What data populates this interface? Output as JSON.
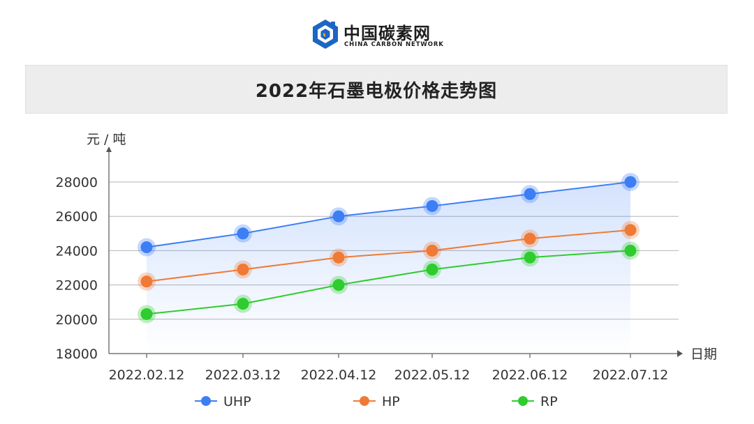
{
  "logo": {
    "name_cn": "中国碳素网",
    "name_en": "CHINA CARBON NETWORK"
  },
  "chart_data": {
    "type": "line",
    "title": "2022年石墨电极价格走势图",
    "ylabel": "元 / 吨",
    "xlabel": "日期",
    "categories": [
      "2022.02.12",
      "2022.03.12",
      "2022.04.12",
      "2022.05.12",
      "2022.06.12",
      "2022.07.12"
    ],
    "ylim": [
      18000,
      28000
    ],
    "yticks": [
      "18000",
      "20000",
      "22000",
      "24000",
      "26000",
      "28000"
    ],
    "grid": true,
    "legend_position": "bottom",
    "series": [
      {
        "name": "UHP",
        "color": "#3d7ef5",
        "values": [
          24200,
          25000,
          26000,
          26600,
          27300,
          28000
        ]
      },
      {
        "name": "HP",
        "color": "#f07a35",
        "values": [
          22200,
          22900,
          23600,
          24000,
          24700,
          25200
        ]
      },
      {
        "name": "RP",
        "color": "#2ecc2e",
        "values": [
          20300,
          20900,
          22000,
          22900,
          23600,
          24000
        ]
      }
    ]
  }
}
